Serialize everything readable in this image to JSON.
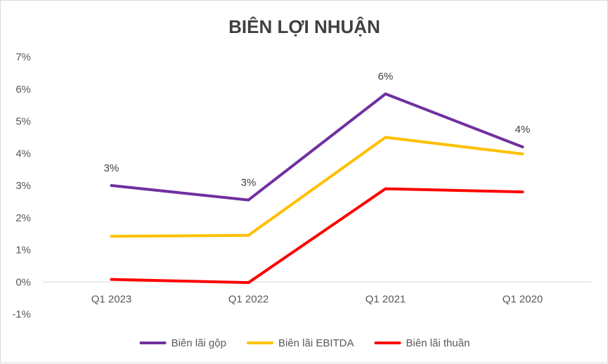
{
  "chart_data": {
    "type": "line",
    "title": "BIÊN LỢI NHUẬN",
    "categories": [
      "Q1 2023",
      "Q1 2022",
      "Q1 2021",
      "Q1 2020"
    ],
    "ylim": [
      -1,
      7
    ],
    "yticks": [
      -1,
      0,
      1,
      2,
      3,
      4,
      5,
      6,
      7
    ],
    "ytick_labels": [
      "-1%",
      "0%",
      "1%",
      "2%",
      "3%",
      "4%",
      "5%",
      "6%",
      "7%"
    ],
    "grid": false,
    "legend_position": "bottom",
    "series": [
      {
        "name": "Biên lãi gộp",
        "color": "#7030a0",
        "values": [
          3.0,
          2.55,
          5.85,
          4.2
        ],
        "data_labels": [
          "3%",
          "3%",
          "6%",
          "4%"
        ]
      },
      {
        "name": "Biên lãi EBITDA",
        "color": "#ffc000",
        "values": [
          1.42,
          1.45,
          4.5,
          3.98
        ]
      },
      {
        "name": "Biên lãi thuần",
        "color": "#ff0000",
        "values": [
          0.08,
          -0.02,
          2.9,
          2.8
        ]
      }
    ]
  }
}
